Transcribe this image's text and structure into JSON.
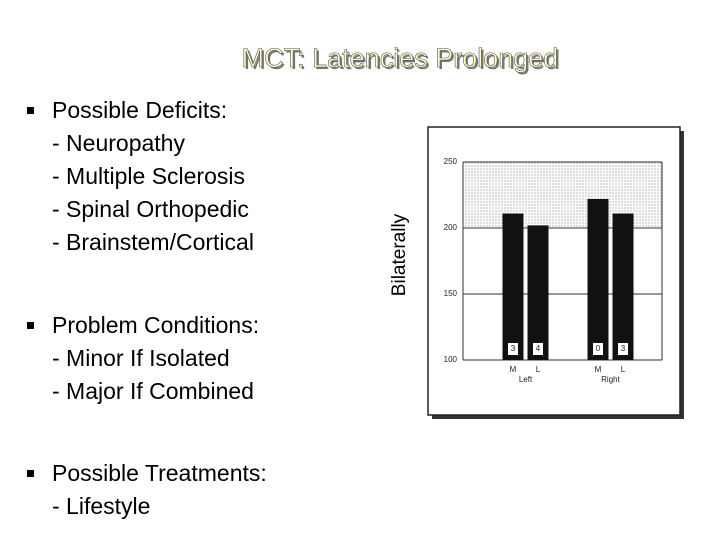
{
  "title": "MCT: Latencies Prolonged",
  "sections": [
    {
      "lines": [
        "Possible Deficits:",
        "- Neuropathy",
        "- Multiple Sclerosis",
        "- Spinal Orthopedic",
        "- Brainstem/Cortical"
      ]
    },
    {
      "lines": [
        "Problem Conditions:",
        "- Minor If Isolated",
        "- Major If Combined"
      ]
    },
    {
      "lines": [
        "Possible Treatments:",
        "- Lifestyle"
      ]
    }
  ],
  "side_label": "Bilaterally",
  "chart_data": {
    "type": "bar",
    "categories": [
      "M",
      "L",
      "M",
      "L"
    ],
    "groups": [
      "Left",
      "Right"
    ],
    "values": [
      211,
      202,
      222,
      211
    ],
    "bar_labels": [
      "3",
      "4",
      "0",
      "3"
    ],
    "color": "#111111",
    "shaded_range": [
      200,
      250
    ],
    "ylim": [
      100,
      250
    ],
    "yticks": [
      100,
      150,
      200,
      250
    ],
    "grid": true
  }
}
